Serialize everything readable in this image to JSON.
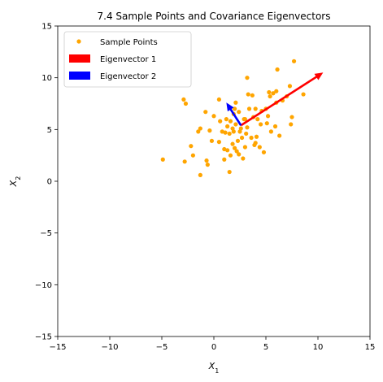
{
  "chart_data": {
    "type": "scatter",
    "title": "7.4 Sample Points and Covariance Eigenvectors",
    "xlabel_base": "X",
    "xlabel_sub": "1",
    "ylabel_base": "X",
    "ylabel_sub": "2",
    "xlim": [
      -15,
      15
    ],
    "ylim": [
      -15,
      15
    ],
    "xticks": [
      -15,
      -10,
      -5,
      0,
      5,
      10,
      15
    ],
    "yticks": [
      -15,
      -10,
      -5,
      0,
      5,
      10,
      15
    ],
    "grid": false,
    "legend_position": "top-left",
    "legend": [
      {
        "label": "Sample Points",
        "kind": "marker",
        "color": "#FFA500"
      },
      {
        "label": "Eigenvector 1",
        "kind": "patch",
        "color": "#FF0000"
      },
      {
        "label": "Eigenvector 2",
        "kind": "patch",
        "color": "#0000FF"
      }
    ],
    "series": [
      {
        "name": "Sample Points",
        "color": "#FFA500",
        "points": [
          [
            -4.9,
            2.1
          ],
          [
            -2.9,
            7.9
          ],
          [
            -2.7,
            7.5
          ],
          [
            -2.8,
            1.9
          ],
          [
            -2.2,
            3.4
          ],
          [
            -2.0,
            2.5
          ],
          [
            -1.5,
            4.8
          ],
          [
            -1.3,
            5.1
          ],
          [
            -1.3,
            0.6
          ],
          [
            -0.8,
            6.7
          ],
          [
            -0.7,
            2.0
          ],
          [
            -0.6,
            1.6
          ],
          [
            -0.4,
            4.9
          ],
          [
            -0.2,
            3.9
          ],
          [
            0.0,
            6.3
          ],
          [
            0.5,
            3.8
          ],
          [
            0.5,
            7.9
          ],
          [
            0.6,
            5.8
          ],
          [
            0.8,
            4.8
          ],
          [
            1.0,
            3.1
          ],
          [
            1.0,
            2.1
          ],
          [
            1.1,
            4.7
          ],
          [
            1.2,
            6.0
          ],
          [
            1.3,
            5.3
          ],
          [
            1.3,
            3.0
          ],
          [
            1.5,
            4.6
          ],
          [
            1.5,
            0.9
          ],
          [
            1.6,
            5.8
          ],
          [
            1.6,
            2.5
          ],
          [
            1.8,
            3.6
          ],
          [
            1.9,
            6.5
          ],
          [
            1.9,
            4.8
          ],
          [
            2.0,
            3.2
          ],
          [
            2.1,
            5.5
          ],
          [
            2.1,
            7.6
          ],
          [
            2.2,
            2.9
          ],
          [
            2.3,
            3.9
          ],
          [
            2.4,
            6.7
          ],
          [
            2.4,
            2.6
          ],
          [
            2.6,
            5.1
          ],
          [
            2.7,
            4.2
          ],
          [
            2.8,
            2.2
          ],
          [
            2.9,
            6.0
          ],
          [
            3.0,
            3.3
          ],
          [
            3.1,
            4.6
          ],
          [
            3.2,
            5.2
          ],
          [
            3.2,
            10.0
          ],
          [
            3.3,
            8.4
          ],
          [
            3.4,
            7.0
          ],
          [
            3.6,
            4.2
          ],
          [
            3.7,
            8.3
          ],
          [
            3.8,
            6.2
          ],
          [
            3.9,
            3.5
          ],
          [
            4.0,
            3.7
          ],
          [
            4.1,
            4.3
          ],
          [
            4.2,
            6.0
          ],
          [
            4.4,
            3.3
          ],
          [
            4.5,
            5.5
          ],
          [
            4.6,
            6.8
          ],
          [
            4.8,
            2.8
          ],
          [
            5.0,
            7.0
          ],
          [
            5.1,
            5.6
          ],
          [
            5.2,
            6.3
          ],
          [
            5.3,
            8.6
          ],
          [
            5.4,
            8.2
          ],
          [
            5.5,
            4.8
          ],
          [
            5.7,
            8.5
          ],
          [
            5.9,
            5.3
          ],
          [
            6.0,
            8.7
          ],
          [
            6.0,
            7.6
          ],
          [
            6.1,
            10.8
          ],
          [
            6.3,
            4.4
          ],
          [
            6.6,
            7.8
          ],
          [
            7.0,
            8.2
          ],
          [
            7.3,
            9.2
          ],
          [
            7.4,
            5.5
          ],
          [
            7.5,
            6.2
          ],
          [
            7.7,
            11.6
          ],
          [
            8.6,
            8.4
          ],
          [
            2.0,
            7.0
          ],
          [
            4.0,
            7.0
          ],
          [
            3.0,
            6.0
          ],
          [
            2.5,
            4.8
          ],
          [
            1.8,
            5.1
          ]
        ]
      }
    ],
    "vectors": [
      {
        "name": "Eigenvector 1",
        "color": "#FF0000",
        "origin": [
          2.6,
          5.4
        ],
        "tip": [
          10.5,
          10.5
        ]
      },
      {
        "name": "Eigenvector 2",
        "color": "#0000FF",
        "origin": [
          2.6,
          5.4
        ],
        "tip": [
          1.2,
          7.6
        ]
      }
    ]
  }
}
